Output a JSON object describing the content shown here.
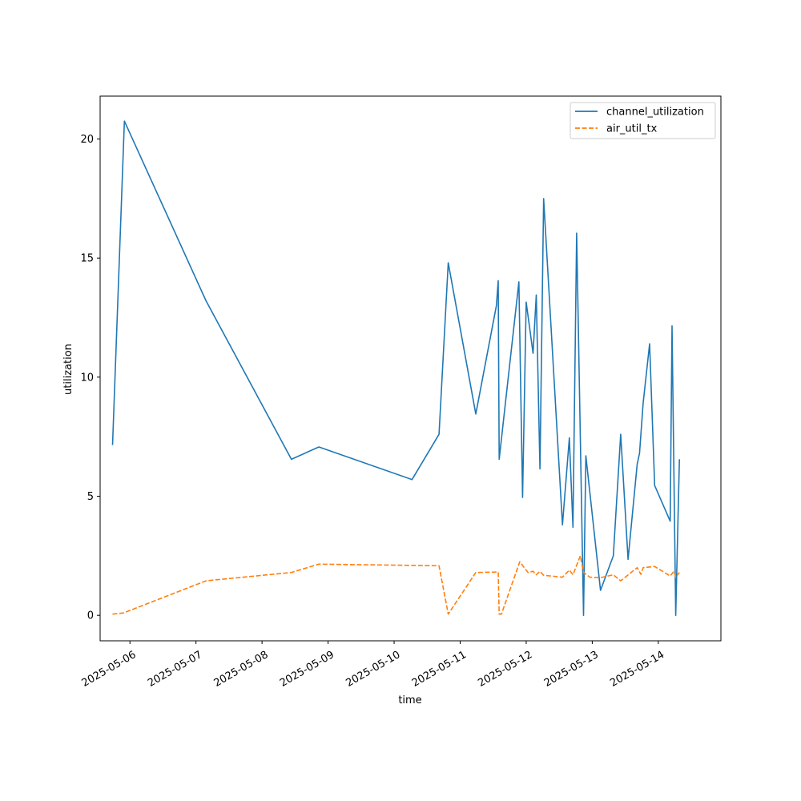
{
  "chart_data": {
    "type": "line",
    "title": "",
    "xlabel": "time",
    "ylabel": "utilization",
    "x_ticks": [
      "2025-05-06",
      "2025-05-07",
      "2025-05-08",
      "2025-05-09",
      "2025-05-10",
      "2025-05-11",
      "2025-05-12",
      "2025-05-13",
      "2025-05-14"
    ],
    "y_ticks": [
      0,
      5,
      10,
      15,
      20
    ],
    "xlim": [
      "2025-05-05 13:10",
      "2025-05-14 22:45"
    ],
    "ylim": [
      -1.07,
      21.8
    ],
    "grid": false,
    "legend_position": "top-right",
    "series": [
      {
        "name": "channel_utilization",
        "color": "#1f77b4",
        "line_style": "solid",
        "points": [
          [
            "2025-05-05 17:40",
            7.15
          ],
          [
            "2025-05-05 22:00",
            20.75
          ],
          [
            "2025-05-07 03:40",
            13.2
          ],
          [
            "2025-05-08 10:40",
            6.55
          ],
          [
            "2025-05-08 20:40",
            7.07
          ],
          [
            "2025-05-10 06:30",
            5.7
          ],
          [
            "2025-05-10 16:20",
            7.6
          ],
          [
            "2025-05-10 19:40",
            14.8
          ],
          [
            "2025-05-11 05:40",
            8.45
          ],
          [
            "2025-05-11 13:10",
            13.0
          ],
          [
            "2025-05-11 13:50",
            14.05
          ],
          [
            "2025-05-11 14:10",
            6.55
          ],
          [
            "2025-05-11 15:40",
            8.1
          ],
          [
            "2025-05-11 21:20",
            14.0
          ],
          [
            "2025-05-11 22:40",
            4.95
          ],
          [
            "2025-05-12 00:00",
            13.15
          ],
          [
            "2025-05-12 02:30",
            11.0
          ],
          [
            "2025-05-12 03:40",
            13.45
          ],
          [
            "2025-05-12 05:00",
            6.15
          ],
          [
            "2025-05-12 06:20",
            17.5
          ],
          [
            "2025-05-12 13:10",
            3.8
          ],
          [
            "2025-05-12 15:40",
            7.45
          ],
          [
            "2025-05-12 17:00",
            3.7
          ],
          [
            "2025-05-12 18:20",
            16.05
          ],
          [
            "2025-05-12 20:50",
            0.0
          ],
          [
            "2025-05-12 21:40",
            6.7
          ],
          [
            "2025-05-13 03:00",
            1.05
          ],
          [
            "2025-05-13 07:40",
            2.5
          ],
          [
            "2025-05-13 10:20",
            7.6
          ],
          [
            "2025-05-13 13:00",
            2.35
          ],
          [
            "2025-05-13 16:20",
            6.35
          ],
          [
            "2025-05-13 17:10",
            6.8
          ],
          [
            "2025-05-13 18:30",
            8.9
          ],
          [
            "2025-05-13 20:50",
            11.4
          ],
          [
            "2025-05-13 22:40",
            5.45
          ],
          [
            "2025-05-14 04:20",
            3.95
          ],
          [
            "2025-05-14 05:00",
            12.15
          ],
          [
            "2025-05-14 06:20",
            0.0
          ],
          [
            "2025-05-14 07:40",
            6.55
          ]
        ]
      },
      {
        "name": "air_util_tx",
        "color": "#ff7f0e",
        "line_style": "dashed",
        "points": [
          [
            "2025-05-05 17:40",
            0.05
          ],
          [
            "2025-05-05 21:40",
            0.1
          ],
          [
            "2025-05-07 03:40",
            1.45
          ],
          [
            "2025-05-08 10:40",
            1.8
          ],
          [
            "2025-05-08 20:40",
            2.15
          ],
          [
            "2025-05-10 16:20",
            2.08
          ],
          [
            "2025-05-10 19:40",
            0.05
          ],
          [
            "2025-05-11 05:40",
            1.8
          ],
          [
            "2025-05-11 13:50",
            1.82
          ],
          [
            "2025-05-11 14:10",
            0.05
          ],
          [
            "2025-05-11 15:00",
            0.05
          ],
          [
            "2025-05-11 21:40",
            2.25
          ],
          [
            "2025-05-12 00:40",
            1.8
          ],
          [
            "2025-05-12 02:30",
            1.85
          ],
          [
            "2025-05-12 03:40",
            1.7
          ],
          [
            "2025-05-12 05:00",
            1.85
          ],
          [
            "2025-05-12 06:20",
            1.68
          ],
          [
            "2025-05-12 13:10",
            1.6
          ],
          [
            "2025-05-12 15:40",
            1.9
          ],
          [
            "2025-05-12 17:00",
            1.7
          ],
          [
            "2025-05-12 19:40",
            2.5
          ],
          [
            "2025-05-12 20:50",
            1.8
          ],
          [
            "2025-05-12 23:10",
            1.6
          ],
          [
            "2025-05-13 03:00",
            1.58
          ],
          [
            "2025-05-13 07:40",
            1.7
          ],
          [
            "2025-05-13 10:20",
            1.45
          ],
          [
            "2025-05-13 16:20",
            2.0
          ],
          [
            "2025-05-13 17:40",
            1.72
          ],
          [
            "2025-05-13 18:30",
            2.0
          ],
          [
            "2025-05-13 22:40",
            2.05
          ],
          [
            "2025-05-14 04:20",
            1.65
          ],
          [
            "2025-05-14 05:40",
            1.85
          ],
          [
            "2025-05-14 06:20",
            1.6
          ],
          [
            "2025-05-14 07:40",
            1.8
          ]
        ]
      }
    ]
  }
}
